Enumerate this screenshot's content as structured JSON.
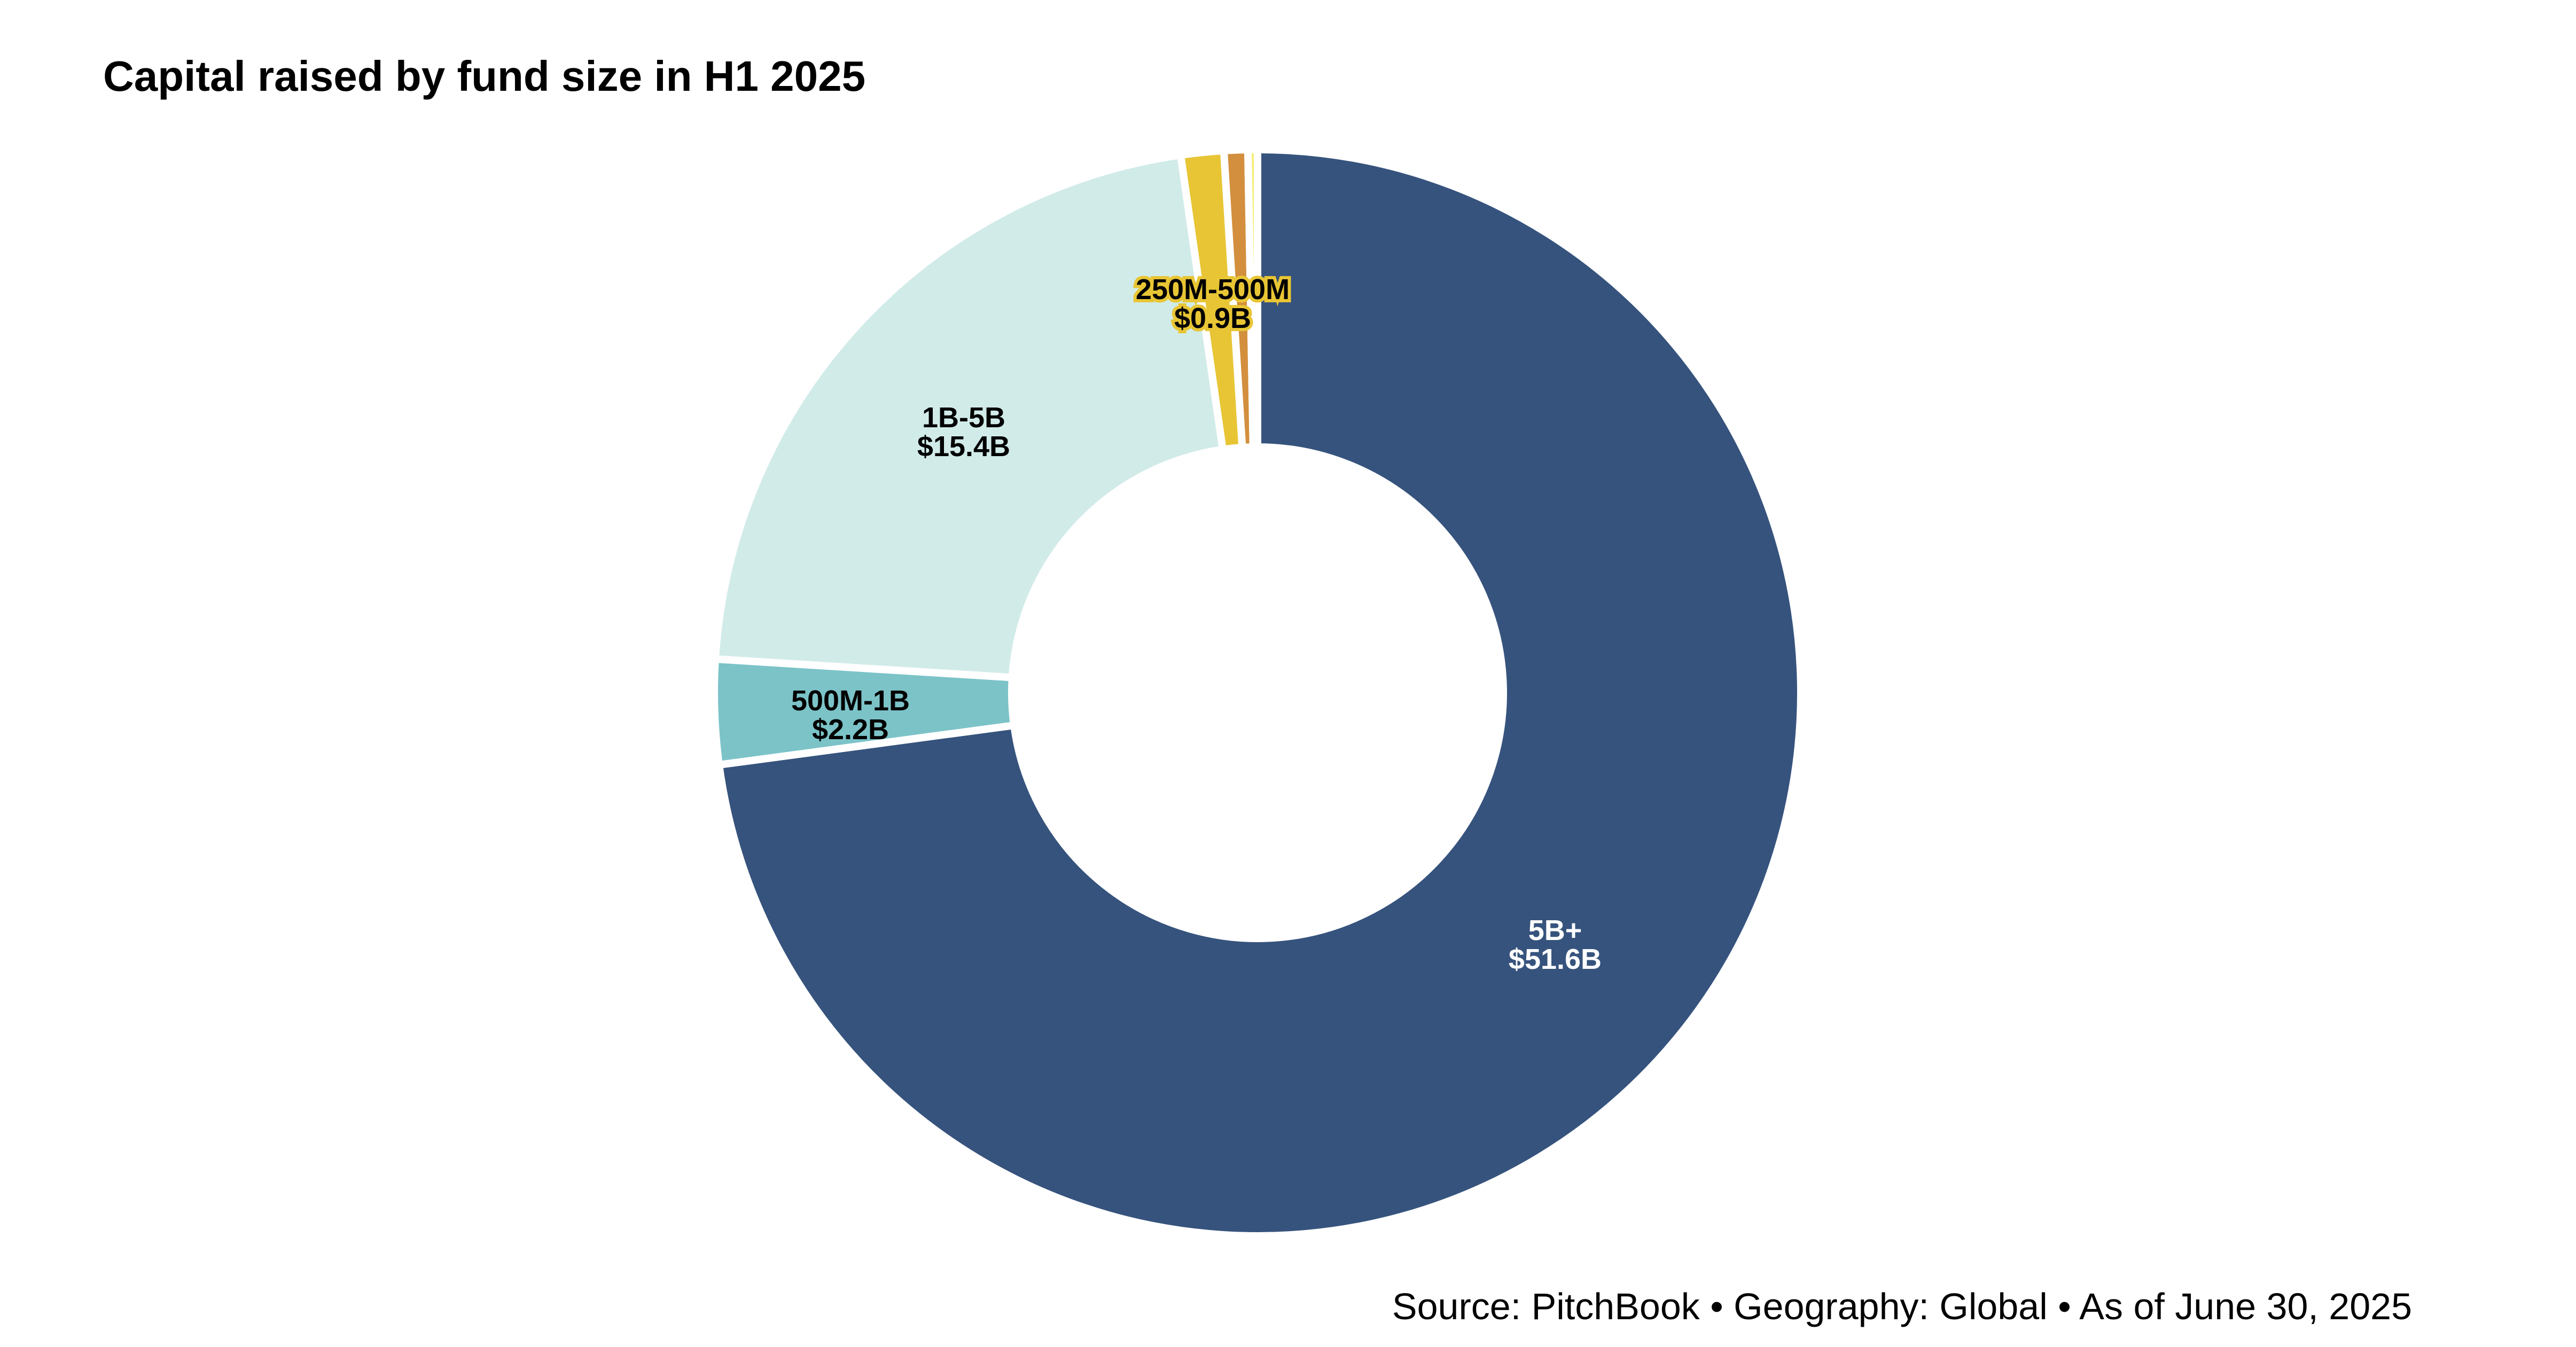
{
  "chart_data": {
    "type": "pie",
    "donut": true,
    "title": "Capital raised by fund size in H1 2025",
    "source": "Source: PitchBook • Geography: Global • As of June 30, 2025",
    "unit": "$B",
    "start_angle": "top, clockwise",
    "slices": [
      {
        "label": "5B+",
        "value": 51.6,
        "value_label": "$51.6B",
        "color": "#36537d",
        "text_color": "#ffffff"
      },
      {
        "label": "500M-1B",
        "value": 2.2,
        "value_label": "$2.2B",
        "color": "#7cc3c8",
        "text_color": "#000000"
      },
      {
        "label": "1B-5B",
        "value": 15.4,
        "value_label": "$15.4B",
        "color": "#d1ebe9",
        "text_color": "#000000"
      },
      {
        "label": "250M-500M",
        "value": 0.9,
        "value_label": "$0.9B",
        "color": "#e8c534",
        "text_color": "#000000"
      },
      {
        "label": "",
        "value": 0.5,
        "value_label": "",
        "color": "#d38f3d",
        "text_color": "#000000"
      },
      {
        "label": "",
        "value": 0.2,
        "value_label": "",
        "color": "#f6ee72",
        "text_color": "#000000"
      }
    ]
  }
}
